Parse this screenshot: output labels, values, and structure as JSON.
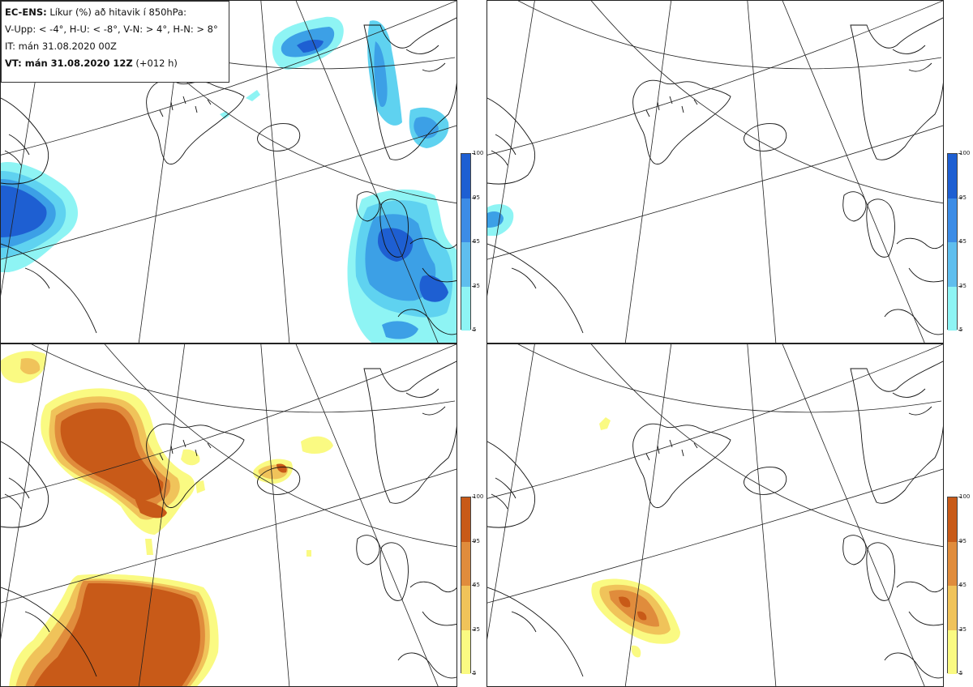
{
  "header": {
    "line1_bold": "EC-ENS:",
    "line1_rest": " Líkur (%) að hitavik í 850hPa:",
    "line2": "V-Upp: < -4°, H-U: < -8°, V-N: > 4°, H-N: > 8°",
    "line3": "IT: mán 31.08.2020 00Z",
    "line4_bold": "VT: mán 31.08.2020 12Z",
    "line4_rest": " (+012 h)"
  },
  "panels": [
    {
      "id": "v-upp",
      "scheme": "cold"
    },
    {
      "id": "h-u",
      "scheme": "cold"
    },
    {
      "id": "v-n",
      "scheme": "warm"
    },
    {
      "id": "h-n",
      "scheme": "warm"
    }
  ],
  "colorbars": {
    "levels": [
      "100",
      "95",
      "65",
      "35",
      "5"
    ],
    "cold": {
      "colors": [
        "#1e5fd2",
        "#3c8ce6",
        "#5fbeee",
        "#8ef4f4"
      ]
    },
    "warm": {
      "colors": [
        "#c85a18",
        "#e08c3c",
        "#f0c35a",
        "#fafa82"
      ]
    }
  },
  "colors": {
    "cold_shades": [
      "#8ef4f4",
      "#5fd2f0",
      "#3ca0e6",
      "#1e5fd2"
    ],
    "warm_shades": [
      "#fafa82",
      "#f0c35a",
      "#e08c3c",
      "#c85a18"
    ],
    "coast": "#111111",
    "grid": "#222222"
  }
}
